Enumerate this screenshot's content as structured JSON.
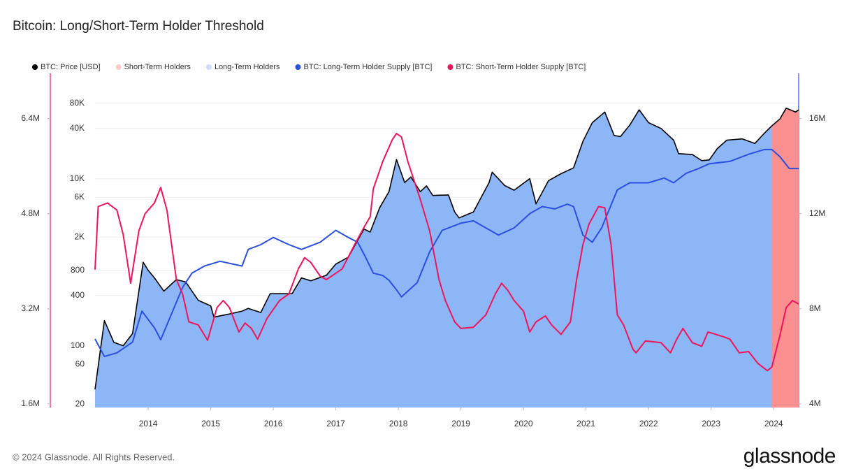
{
  "chart_data": {
    "type": "line",
    "title": "Bitcoin: Long/Short-Term Holder Threshold",
    "xlim": [
      2013.15,
      2024.4
    ],
    "xticks": [
      2014,
      2015,
      2016,
      2017,
      2018,
      2019,
      2020,
      2021,
      2022,
      2023,
      2024
    ],
    "yscale": "log",
    "ylim": [
      18.2,
      182800
    ],
    "yticks": [
      20,
      60,
      100,
      400,
      800,
      {
        "value": 2000,
        "label": "2K"
      },
      {
        "value": 6000,
        "label": "6K"
      },
      {
        "value": 10000,
        "label": "10K"
      },
      {
        "value": 40000,
        "label": "40K"
      },
      {
        "value": 80000,
        "label": "80K"
      }
    ],
    "y2lim": [
      3850000,
      17900000
    ],
    "y2ticks": [
      {
        "value": 4000000,
        "label": "4M"
      },
      {
        "value": 8000000,
        "label": "8M"
      },
      {
        "value": 12000000,
        "label": "12M"
      },
      {
        "value": 16000000,
        "label": "16M"
      }
    ],
    "y3lim": [
      1540000,
      7160000
    ],
    "y3ticks": [
      {
        "value": 1600000,
        "label": "1.6M"
      },
      {
        "value": 3200000,
        "label": "3.2M"
      },
      {
        "value": 4800000,
        "label": "4.8M"
      },
      {
        "value": 6400000,
        "label": "6.4M"
      }
    ],
    "grid": true,
    "legend": "top",
    "series": [
      {
        "name": "BTC: Price [USD]",
        "color": "#000000",
        "axis": "y",
        "x": [
          2013.15,
          2013.3,
          2013.45,
          2013.6,
          2013.75,
          2013.92,
          2014.0,
          2014.1,
          2014.25,
          2014.45,
          2014.6,
          2014.8,
          2015.0,
          2015.05,
          2015.3,
          2015.5,
          2015.6,
          2015.8,
          2015.95,
          2016.3,
          2016.45,
          2016.6,
          2016.85,
          2017.0,
          2017.2,
          2017.45,
          2017.55,
          2017.7,
          2017.85,
          2017.97,
          2018.1,
          2018.2,
          2018.35,
          2018.45,
          2018.55,
          2018.8,
          2018.9,
          2018.97,
          2019.2,
          2019.45,
          2019.5,
          2019.7,
          2019.85,
          2020.1,
          2020.2,
          2020.4,
          2020.6,
          2020.8,
          2020.95,
          2021.1,
          2021.3,
          2021.45,
          2021.55,
          2021.7,
          2021.85,
          2022.0,
          2022.2,
          2022.4,
          2022.48,
          2022.7,
          2022.85,
          2022.97,
          2023.1,
          2023.25,
          2023.5,
          2023.7,
          2023.85,
          2023.97,
          2024.1,
          2024.2,
          2024.35,
          2024.4
        ],
        "values": [
          30,
          200,
          110,
          100,
          140,
          1000,
          800,
          650,
          450,
          620,
          580,
          350,
          300,
          220,
          240,
          260,
          280,
          250,
          420,
          420,
          650,
          600,
          700,
          950,
          1150,
          2500,
          2300,
          4500,
          7000,
          17000,
          9000,
          10500,
          7000,
          8200,
          6300,
          6400,
          4000,
          3400,
          4000,
          9000,
          12000,
          8300,
          7300,
          10000,
          5000,
          9500,
          11500,
          13500,
          28000,
          47000,
          63000,
          33000,
          32000,
          44000,
          67000,
          47000,
          40000,
          29000,
          20000,
          19500,
          16500,
          16800,
          23000,
          29000,
          30000,
          26500,
          35000,
          43000,
          52000,
          70000,
          63000,
          67000
        ]
      },
      {
        "name": "Short-Term Holders",
        "color": "#fc8f8f",
        "x": [
          2023.97,
          2024.4
        ]
      },
      {
        "name": "Long-Term Holders",
        "color": "#8db6f7",
        "x": [
          2013.15,
          2023.97
        ]
      },
      {
        "name": "BTC: Long-Term Holder Supply [BTC]",
        "color": "#2a4fe0",
        "axis": "y2",
        "x": [
          2013.15,
          2013.3,
          2013.5,
          2013.75,
          2013.9,
          2014.1,
          2014.2,
          2014.55,
          2014.7,
          2014.9,
          2015.15,
          2015.5,
          2015.6,
          2015.8,
          2016.0,
          2016.25,
          2016.45,
          2016.75,
          2017.0,
          2017.2,
          2017.35,
          2017.45,
          2017.6,
          2017.75,
          2017.85,
          2017.97,
          2018.05,
          2018.3,
          2018.5,
          2018.7,
          2019.0,
          2019.2,
          2019.4,
          2019.6,
          2019.85,
          2020.1,
          2020.3,
          2020.5,
          2020.7,
          2020.8,
          2020.95,
          2021.1,
          2021.25,
          2021.5,
          2021.7,
          2022.0,
          2022.25,
          2022.4,
          2022.6,
          2022.8,
          2022.97,
          2023.3,
          2023.6,
          2023.85,
          2023.97,
          2024.1,
          2024.25,
          2024.4
        ],
        "values": [
          6730000,
          6000000,
          6150000,
          6600000,
          7900000,
          7200000,
          6700000,
          8900000,
          9500000,
          9800000,
          10000000,
          9800000,
          10500000,
          10700000,
          11000000,
          10700000,
          10500000,
          10800000,
          11300000,
          11000000,
          10800000,
          10300000,
          9500000,
          9400000,
          9200000,
          8800000,
          8500000,
          9100000,
          10400000,
          11300000,
          11600000,
          11700000,
          11400000,
          11100000,
          11400000,
          12000000,
          12300000,
          12200000,
          12400000,
          12300000,
          11100000,
          10800000,
          11400000,
          13000000,
          13300000,
          13300000,
          13500000,
          13300000,
          13700000,
          13900000,
          14100000,
          14200000,
          14500000,
          14700000,
          14700000,
          14400000,
          13900000,
          13900000
        ]
      },
      {
        "name": "BTC: Short-Term Holder Supply [BTC]",
        "color": "#f0145a",
        "axis": "y3",
        "x": [
          2013.15,
          2013.2,
          2013.35,
          2013.5,
          2013.6,
          2013.72,
          2013.85,
          2013.95,
          2014.1,
          2014.2,
          2014.3,
          2014.45,
          2014.55,
          2014.65,
          2014.8,
          2014.95,
          2015.1,
          2015.2,
          2015.3,
          2015.45,
          2015.55,
          2015.65,
          2015.75,
          2015.9,
          2016.1,
          2016.25,
          2016.4,
          2016.5,
          2016.6,
          2016.75,
          2016.85,
          2017.1,
          2017.3,
          2017.45,
          2017.55,
          2017.6,
          2017.75,
          2017.9,
          2017.97,
          2018.05,
          2018.15,
          2018.35,
          2018.5,
          2018.65,
          2018.75,
          2018.9,
          2019.0,
          2019.2,
          2019.4,
          2019.55,
          2019.65,
          2019.75,
          2019.85,
          2020.0,
          2020.1,
          2020.2,
          2020.35,
          2020.45,
          2020.6,
          2020.75,
          2020.85,
          2020.95,
          2021.05,
          2021.2,
          2021.3,
          2021.4,
          2021.5,
          2021.6,
          2021.75,
          2021.8,
          2021.95,
          2022.2,
          2022.35,
          2022.45,
          2022.55,
          2022.7,
          2022.85,
          2022.95,
          2023.2,
          2023.3,
          2023.45,
          2023.6,
          2023.75,
          2023.9,
          2023.97,
          2024.1,
          2024.2,
          2024.3,
          2024.4
        ],
        "values": [
          3860000,
          4920000,
          4980000,
          4860000,
          4450000,
          3630000,
          4510000,
          4800000,
          4980000,
          5240000,
          4860000,
          3690000,
          3450000,
          2980000,
          2930000,
          2670000,
          3220000,
          3340000,
          3220000,
          2810000,
          2960000,
          2870000,
          2690000,
          3040000,
          3340000,
          3450000,
          3870000,
          4060000,
          3980000,
          3750000,
          3690000,
          3870000,
          4280000,
          4570000,
          4750000,
          5220000,
          5680000,
          6040000,
          6150000,
          6090000,
          5680000,
          5040000,
          4510000,
          3690000,
          3340000,
          2980000,
          2870000,
          2890000,
          3100000,
          3450000,
          3630000,
          3510000,
          3340000,
          3160000,
          2810000,
          2980000,
          3080000,
          2930000,
          2770000,
          2980000,
          3690000,
          4280000,
          4630000,
          4920000,
          4900000,
          4280000,
          3100000,
          2930000,
          2520000,
          2460000,
          2660000,
          2630000,
          2460000,
          2690000,
          2870000,
          2630000,
          2570000,
          2810000,
          2730000,
          2690000,
          2460000,
          2480000,
          2280000,
          2160000,
          2220000,
          2750000,
          3220000,
          3340000,
          3280000
        ]
      }
    ]
  },
  "footer": {
    "copyright": "© 2024 Glassnode. All Rights Reserved.",
    "logo": "glassnode"
  }
}
